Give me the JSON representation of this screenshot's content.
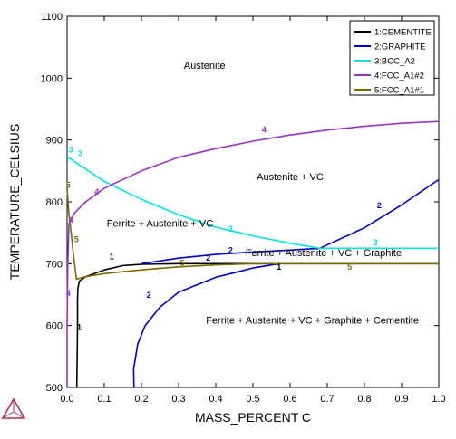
{
  "chart_data": {
    "type": "line",
    "xlabel": "MASS_PERCENT C",
    "ylabel": "TEMPERATURE_CELSIUS",
    "xlim": [
      0,
      1
    ],
    "ylim": [
      500,
      1100
    ],
    "x_ticks": [
      "0.0",
      "0.1",
      "0.2",
      "0.3",
      "0.4",
      "0.5",
      "0.6",
      "0.7",
      "0.8",
      "0.9",
      "1.0"
    ],
    "y_ticks": [
      "500",
      "600",
      "700",
      "800",
      "900",
      "1000",
      "1100"
    ],
    "grid": false,
    "legend_position": "top-right",
    "series": [
      {
        "name": "1:CEMENTITE",
        "color": "#000000",
        "label": "1",
        "segments": [
          [
            [
              0.026,
              500
            ],
            [
              0.027,
              545
            ],
            [
              0.028,
              600
            ],
            [
              0.028,
              640
            ],
            [
              0.029,
              660
            ],
            [
              0.033,
              672
            ],
            [
              0.05,
              679
            ],
            [
              0.1,
              690
            ],
            [
              0.15,
              697
            ],
            [
              0.2,
              699
            ],
            [
              0.3,
              700
            ],
            [
              0.5,
              700
            ],
            [
              0.7,
              700
            ],
            [
              1.0,
              700
            ]
          ]
        ]
      },
      {
        "name": "2:GRAPHITE",
        "color": "#0000cc",
        "label": "2",
        "segments": [
          [
            [
              0.18,
              500
            ],
            [
              0.179,
              530
            ],
            [
              0.19,
              570
            ],
            [
              0.21,
              600
            ],
            [
              0.25,
              630
            ],
            [
              0.3,
              654
            ],
            [
              0.4,
              678
            ],
            [
              0.5,
              693
            ],
            [
              0.57,
              700
            ]
          ],
          [
            [
              0.2,
              700
            ],
            [
              0.3,
              709
            ],
            [
              0.4,
              715
            ],
            [
              0.5,
              719
            ],
            [
              0.6,
              722
            ],
            [
              0.68,
              725
            ],
            [
              0.8,
              758
            ],
            [
              0.9,
              795
            ],
            [
              1.0,
              836
            ]
          ]
        ]
      },
      {
        "name": "3:BCC_A2",
        "color": "#00e5e5",
        "label": "3",
        "segments": [
          [
            [
              0.0,
              873
            ],
            [
              0.1,
              833
            ],
            [
              0.2,
              804
            ],
            [
              0.3,
              779
            ],
            [
              0.4,
              759
            ],
            [
              0.5,
              745
            ],
            [
              0.6,
              733
            ],
            [
              0.68,
              725
            ],
            [
              0.8,
              725
            ],
            [
              1.0,
              725
            ]
          ]
        ]
      },
      {
        "name": "4:FCC_A1#2",
        "color": "#9932cc",
        "label": "4",
        "segments": [
          [
            [
              0.0,
              500
            ],
            [
              0.0,
              600
            ],
            [
              0.002,
              700
            ],
            [
              0.005,
              765
            ],
            [
              0.02,
              782
            ],
            [
              0.05,
              800
            ],
            [
              0.1,
              822
            ],
            [
              0.2,
              850
            ],
            [
              0.3,
              872
            ],
            [
              0.4,
              886
            ],
            [
              0.5,
              898
            ],
            [
              0.6,
              908
            ],
            [
              0.7,
              916
            ],
            [
              0.8,
              922
            ],
            [
              0.9,
              927
            ],
            [
              1.0,
              930
            ]
          ]
        ]
      },
      {
        "name": "5:FCC_A1#1",
        "color": "#7a6a00",
        "label": "5",
        "segments": [
          [
            [
              0.0,
              820
            ],
            [
              0.005,
              780
            ],
            [
              0.01,
              755
            ],
            [
              0.015,
              725
            ],
            [
              0.02,
              700
            ],
            [
              0.025,
              675
            ],
            [
              0.05,
              679
            ],
            [
              0.1,
              684
            ],
            [
              0.2,
              690
            ],
            [
              0.3,
              695
            ],
            [
              0.4,
              698
            ],
            [
              0.5,
              700
            ],
            [
              0.6,
              700
            ],
            [
              0.8,
              700
            ],
            [
              1.0,
              700
            ]
          ]
        ]
      }
    ],
    "curve_labels": [
      {
        "series": 0,
        "text": "1",
        "x": 0.12,
        "y": 707
      },
      {
        "series": 0,
        "text": "1",
        "x": 0.57,
        "y": 690
      },
      {
        "series": 0,
        "text": "1",
        "x": 0.033,
        "y": 593
      },
      {
        "series": 1,
        "text": "2",
        "x": 0.22,
        "y": 645
      },
      {
        "series": 1,
        "text": "2",
        "x": 0.38,
        "y": 705
      },
      {
        "series": 1,
        "text": "2",
        "x": 0.44,
        "y": 717
      },
      {
        "series": 1,
        "text": "2",
        "x": 0.84,
        "y": 790
      },
      {
        "series": 2,
        "text": "3",
        "x": 0.01,
        "y": 880
      },
      {
        "series": 2,
        "text": "3",
        "x": 0.035,
        "y": 874
      },
      {
        "series": 2,
        "text": "3",
        "x": 0.44,
        "y": 752
      },
      {
        "series": 2,
        "text": "3",
        "x": 0.83,
        "y": 730
      },
      {
        "series": 3,
        "text": "4",
        "x": 0.003,
        "y": 648
      },
      {
        "series": 3,
        "text": "4",
        "x": 0.01,
        "y": 766
      },
      {
        "series": 3,
        "text": "4",
        "x": 0.08,
        "y": 812
      },
      {
        "series": 3,
        "text": "4",
        "x": 0.53,
        "y": 912
      },
      {
        "series": 4,
        "text": "5",
        "x": 0.003,
        "y": 823
      },
      {
        "series": 4,
        "text": "5",
        "x": 0.025,
        "y": 735
      },
      {
        "series": 4,
        "text": "5",
        "x": 0.31,
        "y": 697
      },
      {
        "series": 4,
        "text": "5",
        "x": 0.76,
        "y": 690
      }
    ],
    "annotations": [
      {
        "text": "Austenite",
        "x": 0.37,
        "y": 1015
      },
      {
        "text": "Austenite + VC",
        "x": 0.6,
        "y": 835
      },
      {
        "text": "Ferrite + Austenite + VC",
        "x": 0.25,
        "y": 760
      },
      {
        "text": "Ferrite + Austenite + VC + Graphite",
        "x": 0.69,
        "y": 712
      },
      {
        "text": "Ferrite + Austenite + VC + Graphite + Cementite",
        "x": 0.66,
        "y": 603
      }
    ]
  },
  "colors": {
    "logo": "#b03050"
  }
}
